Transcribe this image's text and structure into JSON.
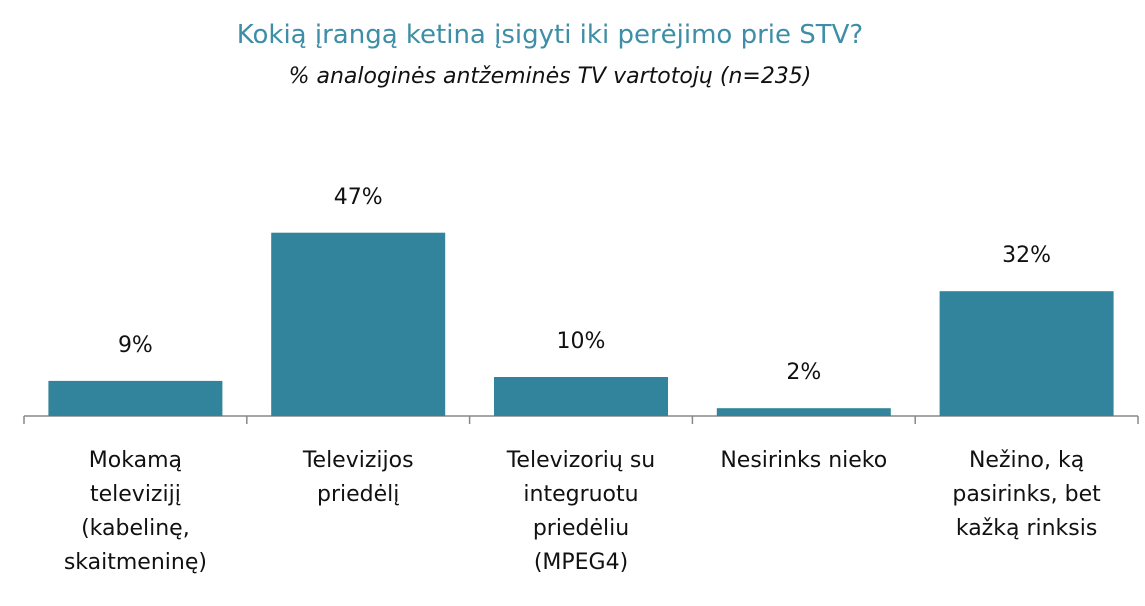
{
  "chart_data": {
    "type": "bar",
    "title": "Kokią įrangą ketina įsigyti iki perėjimo prie STV?",
    "subtitle": "% analoginės antžeminės TV vartotojų (n=235)",
    "categories": [
      "Mokamą\ntelevizijį\n(kabelinę,\nskaitmeninę)",
      "Televizijos\npriedėlį",
      "Televizorių su\nintegruotu\npriedėliu\n(MPEG4)",
      "Nesirinks nieko",
      "Nežino, ką\npasirinks, bet\nkažką rinksis"
    ],
    "values": [
      9,
      47,
      10,
      2,
      32
    ],
    "value_labels": [
      "9%",
      "47%",
      "10%",
      "2%",
      "32%"
    ],
    "color": "#31849b"
  }
}
